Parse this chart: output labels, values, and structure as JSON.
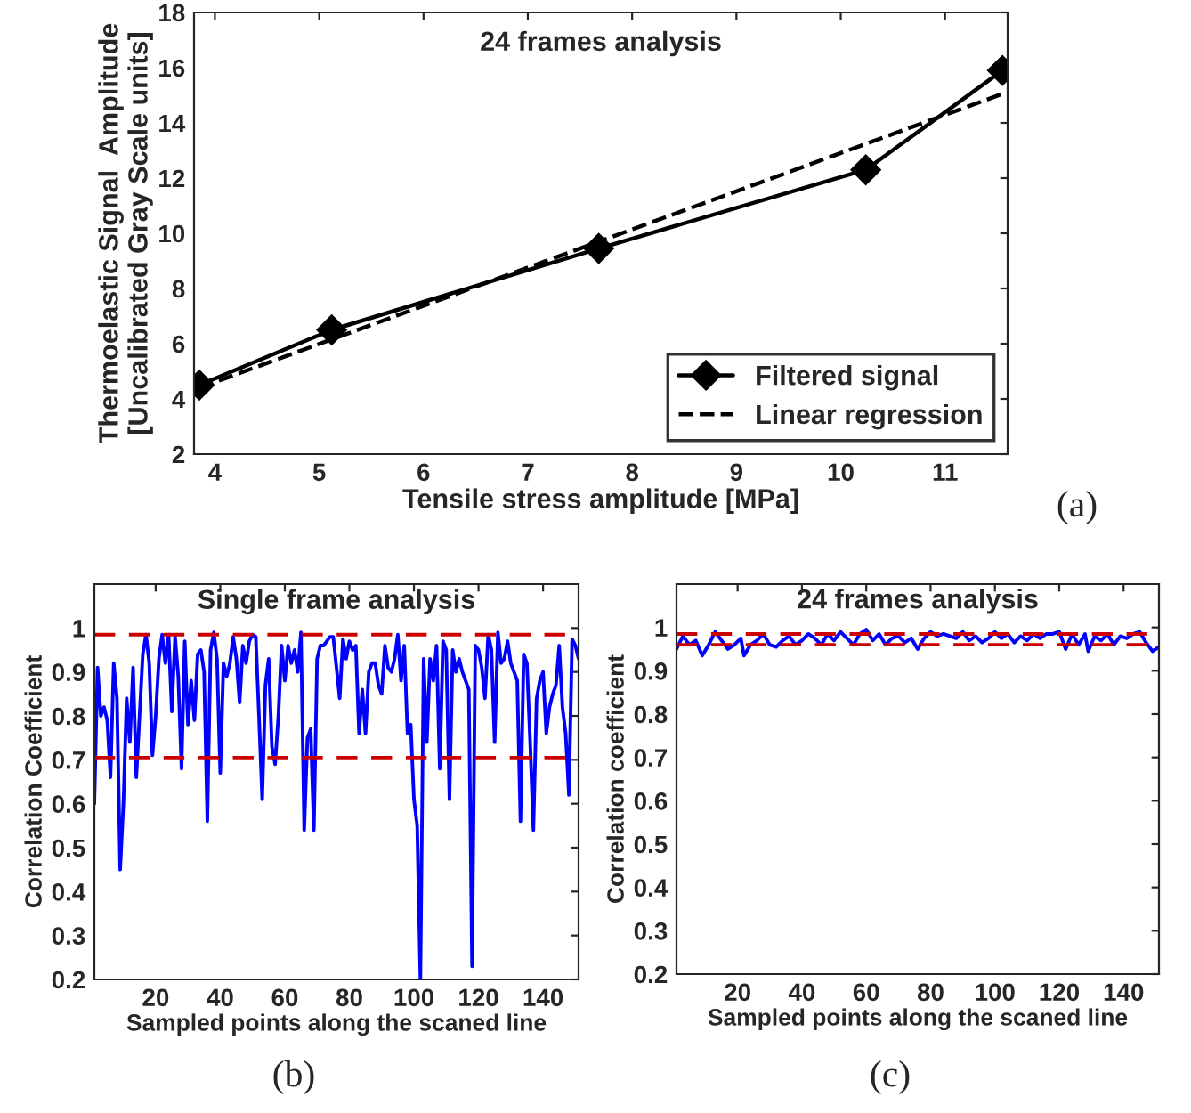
{
  "chart_data": [
    {
      "type": "line",
      "title": "24 frames analysis",
      "xlabel": "Tensile stress amplitude [MPa]",
      "ylabel": "Thermoelastic Signal  Amplitude\n[Uncalibrated Gray Scale units]",
      "annotations": [
        "(a)"
      ],
      "legend": "bottom right",
      "xlim": [
        3.8,
        11.6
      ],
      "ylim": [
        2,
        18
      ],
      "xticks": [
        4,
        5,
        6,
        7,
        8,
        9,
        10,
        11
      ],
      "yticks": [
        2,
        4,
        6,
        8,
        10,
        12,
        14,
        16,
        18
      ],
      "series": [
        {
          "name": "Filtered signal",
          "color": "#000000",
          "marker": "diamond",
          "line_style": "solid",
          "x": [
            3.85,
            5.12,
            7.68,
            10.24,
            11.55
          ],
          "values": [
            4.5,
            6.5,
            9.45,
            12.3,
            15.9
          ]
        },
        {
          "name": "Linear regression",
          "color": "#000000",
          "marker": "none",
          "line_style": "dashed",
          "x": [
            3.85,
            11.55
          ],
          "values": [
            4.4,
            15.05
          ]
        }
      ]
    },
    {
      "type": "line",
      "title": "Single frame analysis",
      "xlabel": "Sampled points along the scaned line",
      "ylabel": "Correlation Coefficient",
      "annotations": [
        "(b)"
      ],
      "xlim": [
        1,
        151
      ],
      "ylim": [
        0.2,
        1.1
      ],
      "xticks": [
        20,
        40,
        60,
        80,
        100,
        120,
        140
      ],
      "yticks": [
        0.2,
        0.3,
        0.4,
        0.5,
        0.6,
        0.7,
        0.8,
        0.9,
        1
      ],
      "ref_lines": [
        {
          "axis": "y",
          "value": 0.985,
          "color": "#cc0000",
          "line_style": "dashed"
        },
        {
          "axis": "y",
          "value": 0.705,
          "color": "#cc0000",
          "line_style": "dashed"
        }
      ],
      "series": [
        {
          "color": "#0000ff",
          "marker": "none",
          "line_style": "solid",
          "x": [
            1,
            2,
            3,
            4,
            5,
            6,
            7,
            8,
            9,
            10,
            11,
            12,
            13,
            14,
            15,
            16,
            17,
            18,
            19,
            20,
            21,
            22,
            23,
            24,
            25,
            26,
            27,
            28,
            29,
            30,
            31,
            32,
            33,
            34,
            35,
            36,
            37,
            38,
            39,
            40,
            41,
            42,
            43,
            44,
            45,
            46,
            47,
            48,
            49,
            50,
            51,
            52,
            53,
            54,
            55,
            56,
            57,
            58,
            59,
            60,
            61,
            62,
            63,
            64,
            65,
            66,
            67,
            68,
            69,
            70,
            71,
            72,
            74,
            75,
            77,
            78,
            79,
            80,
            81,
            82,
            83,
            84,
            85,
            86,
            87,
            88,
            89,
            90,
            91,
            92,
            93,
            94,
            95,
            96,
            97,
            98,
            99,
            100,
            101,
            102,
            103,
            104,
            105,
            106,
            107,
            108,
            109,
            110,
            111,
            112,
            113,
            114,
            115,
            116,
            117,
            118,
            119,
            120,
            121,
            122,
            123,
            124,
            125,
            126,
            127,
            128,
            129,
            130,
            131,
            132,
            133,
            134,
            135,
            136,
            137,
            138,
            139,
            140,
            141,
            142,
            143,
            144,
            145,
            146,
            147,
            148,
            149,
            150,
            151
          ],
          "values": [
            0.6,
            0.91,
            0.8,
            0.82,
            0.79,
            0.66,
            0.92,
            0.84,
            0.45,
            0.6,
            0.84,
            0.74,
            0.91,
            0.66,
            0.8,
            0.94,
            0.985,
            0.92,
            0.71,
            0.8,
            0.93,
            0.985,
            0.92,
            0.985,
            0.81,
            0.98,
            0.89,
            0.68,
            0.97,
            0.78,
            0.88,
            0.79,
            0.94,
            0.95,
            0.9,
            0.56,
            0.95,
            0.99,
            0.93,
            0.67,
            0.92,
            0.89,
            0.92,
            0.98,
            0.93,
            0.83,
            0.96,
            0.92,
            0.97,
            0.985,
            0.98,
            0.8,
            0.61,
            0.87,
            0.93,
            0.73,
            0.69,
            0.8,
            0.96,
            0.88,
            0.96,
            0.92,
            0.95,
            0.9,
            0.99,
            0.54,
            0.75,
            0.77,
            0.54,
            0.93,
            0.96,
            0.96,
            0.98,
            0.98,
            0.84,
            0.975,
            0.93,
            0.97,
            0.95,
            0.96,
            0.76,
            0.86,
            0.76,
            0.9,
            0.92,
            0.92,
            0.87,
            0.85,
            0.96,
            0.91,
            0.9,
            0.93,
            0.985,
            0.88,
            0.96,
            0.76,
            0.78,
            0.61,
            0.55,
            0.2,
            0.93,
            0.74,
            0.93,
            0.88,
            0.96,
            0.68,
            0.97,
            0.95,
            0.61,
            0.95,
            0.9,
            0.93,
            0.9,
            0.88,
            0.86,
            0.23,
            0.96,
            0.95,
            0.91,
            0.84,
            0.985,
            0.95,
            0.74,
            0.99,
            0.92,
            0.93,
            0.97,
            0.92,
            0.9,
            0.88,
            0.56,
            0.94,
            0.92,
            0.74,
            0.54,
            0.84,
            0.88,
            0.9,
            0.76,
            0.82,
            0.85,
            0.87,
            0.96,
            0.82,
            0.76,
            0.62,
            0.975,
            0.96,
            0.93
          ]
        }
      ]
    },
    {
      "type": "line",
      "title": "24 frames analysis",
      "xlabel": "Sampled points along the scaned line",
      "ylabel": "Correlation coefficient",
      "annotations": [
        "(c)"
      ],
      "xlim": [
        1,
        151
      ],
      "ylim": [
        0.2,
        1.1
      ],
      "xticks": [
        20,
        40,
        60,
        80,
        100,
        120,
        140
      ],
      "yticks": [
        0.2,
        0.3,
        0.4,
        0.5,
        0.6,
        0.7,
        0.8,
        0.9,
        1
      ],
      "ref_lines": [
        {
          "axis": "y",
          "value": 0.985,
          "color": "#cc0000",
          "line_style": "dashed"
        },
        {
          "axis": "y",
          "value": 0.96,
          "color": "#cc0000",
          "line_style": "dashed"
        }
      ],
      "series": [
        {
          "color": "#0000ff",
          "marker": "none",
          "line_style": "solid",
          "x": [
            1,
            3,
            5,
            7,
            9,
            11,
            13,
            15,
            17,
            19,
            21,
            22,
            24,
            26,
            28,
            30,
            32,
            34,
            36,
            38,
            40,
            42,
            44,
            46,
            48,
            50,
            52,
            54,
            56,
            58,
            60,
            62,
            64,
            66,
            68,
            70,
            72,
            74,
            76,
            78,
            80,
            82,
            84,
            86,
            88,
            90,
            92,
            94,
            96,
            98,
            100,
            102,
            104,
            106,
            108,
            110,
            112,
            114,
            116,
            118,
            120,
            122,
            124,
            126,
            128,
            129,
            131,
            133,
            135,
            137,
            139,
            141,
            143,
            145,
            147,
            149,
            151
          ],
          "values": [
            0.95,
            0.98,
            0.96,
            0.97,
            0.935,
            0.96,
            0.99,
            0.97,
            0.95,
            0.96,
            0.975,
            0.935,
            0.96,
            0.97,
            0.985,
            0.96,
            0.955,
            0.97,
            0.98,
            0.96,
            0.97,
            0.985,
            0.975,
            0.96,
            0.985,
            0.97,
            0.99,
            0.975,
            0.96,
            0.985,
            0.995,
            0.97,
            0.985,
            0.96,
            0.975,
            0.98,
            0.965,
            0.975,
            0.95,
            0.975,
            0.99,
            0.98,
            0.985,
            0.98,
            0.975,
            0.99,
            0.97,
            0.98,
            0.965,
            0.975,
            0.99,
            0.975,
            0.985,
            0.965,
            0.98,
            0.97,
            0.985,
            0.975,
            0.985,
            0.985,
            0.99,
            0.95,
            0.985,
            0.96,
            0.985,
            0.945,
            0.98,
            0.97,
            0.985,
            0.96,
            0.98,
            0.975,
            0.985,
            0.99,
            0.965,
            0.945,
            0.955
          ]
        }
      ]
    }
  ]
}
